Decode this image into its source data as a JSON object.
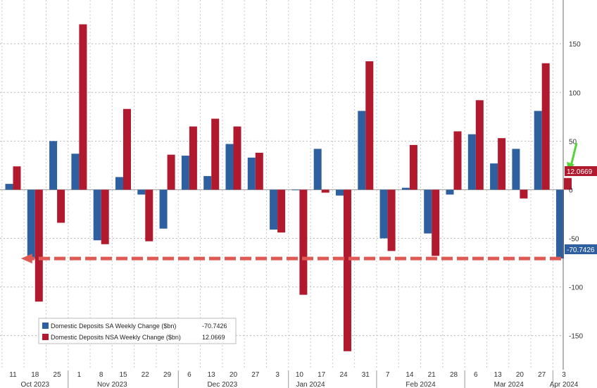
{
  "chart_data": {
    "type": "bar",
    "categories": [
      "11",
      "18",
      "25",
      "1",
      "8",
      "15",
      "22",
      "29",
      "6",
      "13",
      "20",
      "27",
      "3",
      "10",
      "17",
      "24",
      "31",
      "7",
      "14",
      "21",
      "28",
      "6",
      "13",
      "20",
      "27",
      "3"
    ],
    "months": [
      {
        "label": "Oct 2023",
        "at": 1
      },
      {
        "label": "Nov 2023",
        "at": 4.5
      },
      {
        "label": "Dec 2023",
        "at": 9.5
      },
      {
        "label": "Jan 2024",
        "at": 13.5
      },
      {
        "label": "Feb 2024",
        "at": 18.5
      },
      {
        "label": "Mar 2024",
        "at": 22.5
      },
      {
        "label": "Apr 2024",
        "at": 25
      }
    ],
    "series": [
      {
        "name": "Domestic Deposits SA Weekly Change ($bn)",
        "last_value": "-70.7426",
        "color": "#2e5f9e",
        "values": [
          6,
          -71,
          50,
          37,
          -52,
          13,
          -5,
          -40,
          35,
          14,
          47,
          33,
          -41,
          0,
          42,
          -6,
          81,
          -50,
          2,
          -45,
          -5,
          57,
          27,
          42,
          81,
          -70.7426
        ]
      },
      {
        "name": "Domestic Deposits NSA Weekly Change ($bn)",
        "last_value": "12.0669",
        "color": "#b0192e",
        "values": [
          24,
          -115,
          -34,
          170,
          -56,
          83,
          -53,
          36,
          65,
          73,
          65,
          38,
          -44,
          -108,
          -3,
          -166,
          132,
          -63,
          46,
          -68,
          60,
          92,
          53,
          -9,
          130,
          12.0669
        ]
      }
    ],
    "y_ticks": [
      150,
      100,
      50,
      0,
      -50,
      -100,
      -150
    ],
    "ylim": [
      -185,
      195
    ],
    "grid": true,
    "legend_position": "bottom-left",
    "annotation": {
      "type": "dashed-arrow",
      "color": "#e05a55",
      "from_category": 25,
      "to_category": 1,
      "value": -70.7426
    },
    "highlight_arrow_color": "#55d43a"
  }
}
